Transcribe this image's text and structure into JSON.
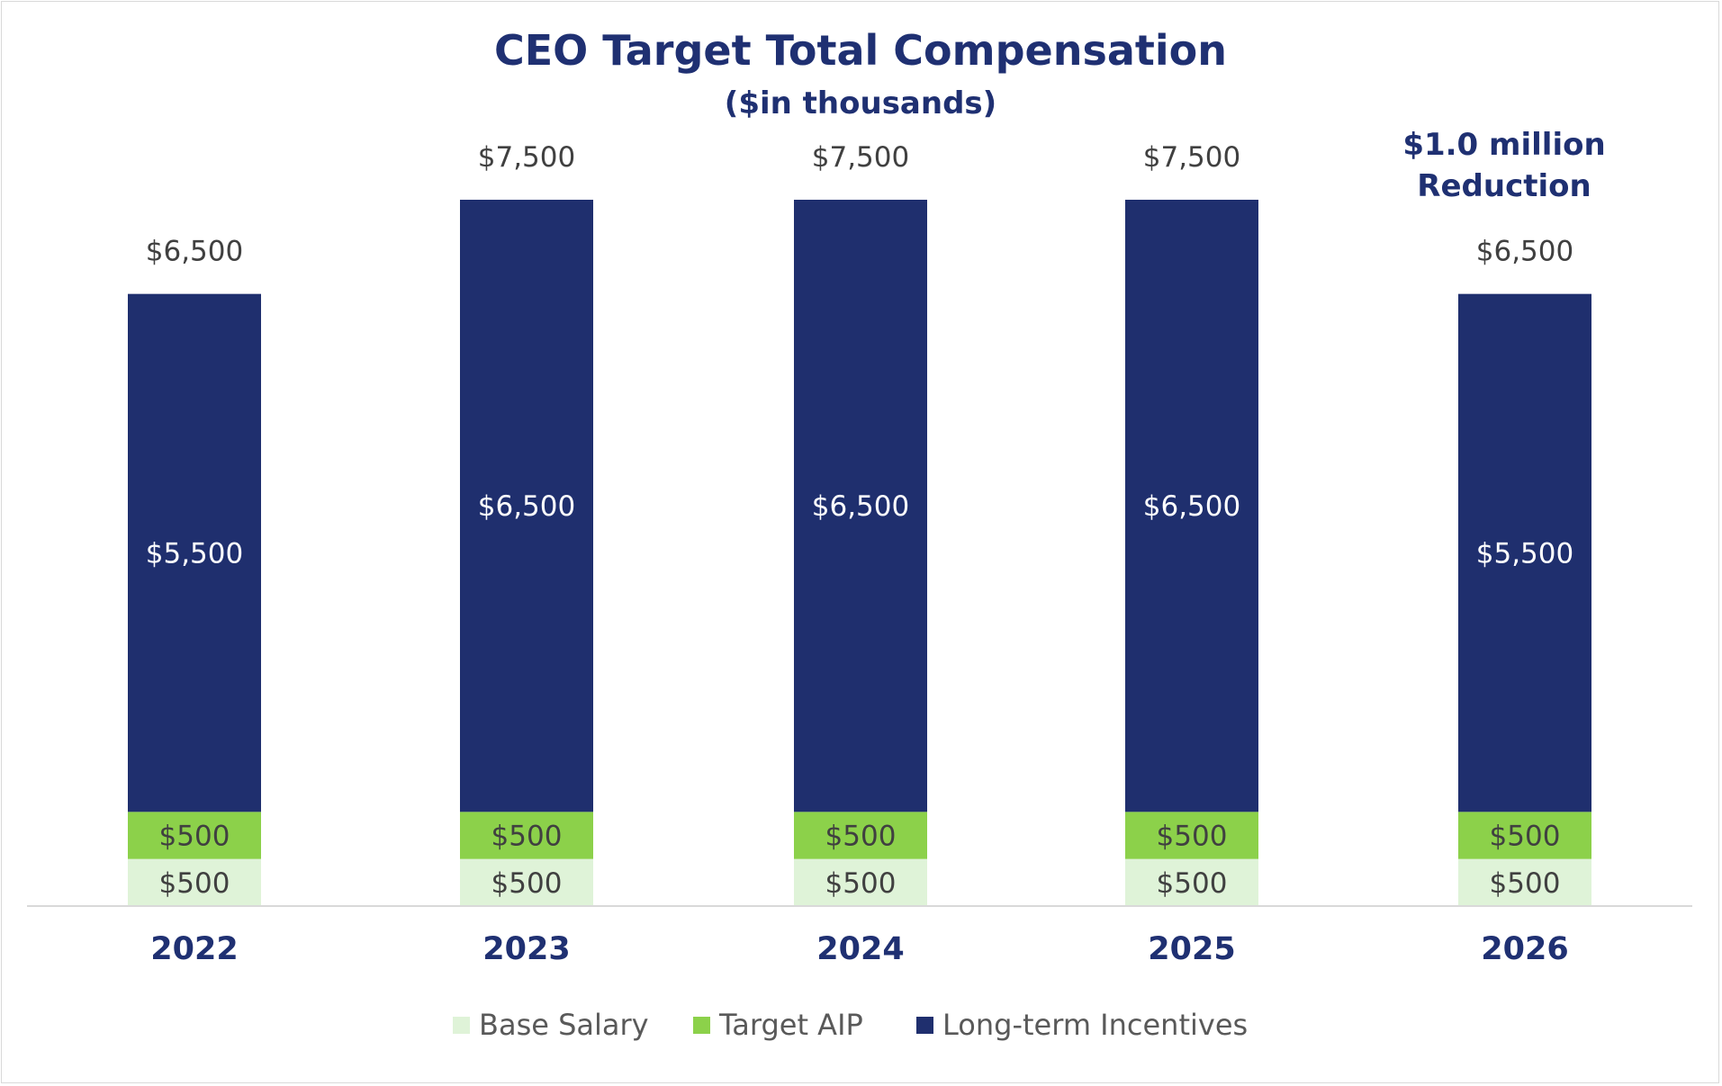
{
  "chart_data": {
    "type": "bar",
    "stacked": true,
    "title": "CEO Target Total Compensation",
    "subtitle": "($in thousands)",
    "annotation": [
      "$1.0 million",
      "Reduction"
    ],
    "categories": [
      "2022",
      "2023",
      "2024",
      "2025",
      "2026"
    ],
    "series": [
      {
        "name": "Base Salary",
        "values": [
          500,
          500,
          500,
          500,
          500
        ],
        "labels": [
          "$500",
          "$500",
          "$500",
          "$500",
          "$500"
        ],
        "color": "#dff3d8",
        "label_color": "#404040"
      },
      {
        "name": "Target AIP",
        "values": [
          500,
          500,
          500,
          500,
          500
        ],
        "labels": [
          "$500",
          "$500",
          "$500",
          "$500",
          "$500"
        ],
        "color": "#8cd14a",
        "label_color": "#404040"
      },
      {
        "name": "Long-term Incentives",
        "values": [
          5500,
          6500,
          6500,
          6500,
          5500
        ],
        "labels": [
          "$5,500",
          "$6,500",
          "$6,500",
          "$6,500",
          "$5,500"
        ],
        "color": "#1f2f6e",
        "label_color": "#ffffff"
      }
    ],
    "totals": [
      "$6,500",
      "$7,500",
      "$7,500",
      "$7,500",
      "$6,500"
    ],
    "ylim": [
      0,
      7500
    ],
    "grid": false,
    "legend_position": "bottom",
    "xlabel": "",
    "ylabel": ""
  },
  "colors": {
    "title": "#1f3072",
    "category_label": "#1f3072",
    "total_label": "#404040",
    "legend_text": "#595959",
    "axis_line": "#d9d9d9"
  }
}
